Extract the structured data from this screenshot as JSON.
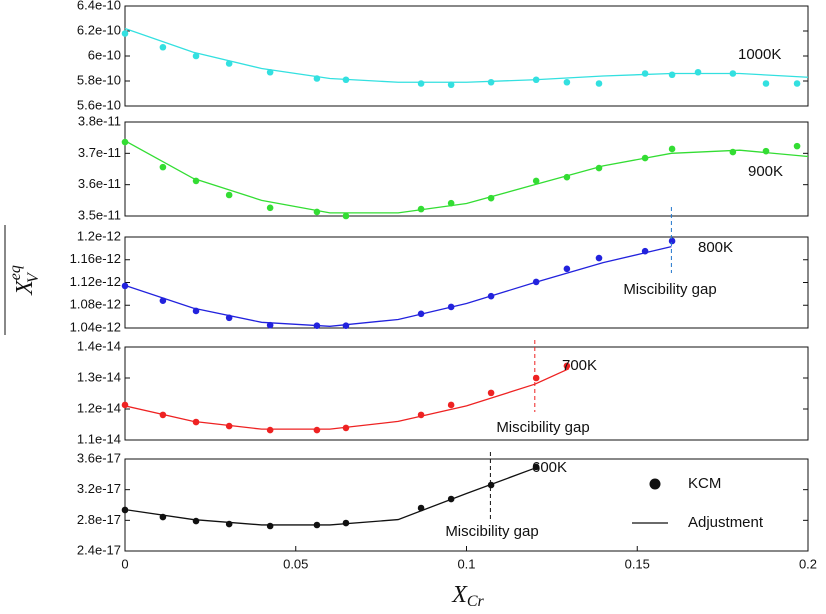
{
  "x_label": {
    "main": "X",
    "sub": "Cr"
  },
  "y_label": {
    "main": "X",
    "sup": "eq",
    "sub": "V"
  },
  "chart_data": [
    {
      "type": "scatter",
      "label": "1000K",
      "label_color": "#33dddd",
      "xlim": [
        0,
        0.2
      ],
      "ylim": [
        5.6e-10,
        6.4e-10
      ],
      "yticks": [
        5.6e-10,
        5.8e-10,
        6e-10,
        6.2e-10,
        6.4e-10
      ],
      "series": [
        {
          "style": "points",
          "color": "#33e0e0",
          "x": [
            0,
            0.0111,
            0.0208,
            0.0305,
            0.0425,
            0.0562,
            0.0647,
            0.0867,
            0.0955,
            0.1072,
            0.1204,
            0.1294,
            0.1388,
            0.1523,
            0.1602,
            0.1678,
            0.178,
            0.1877,
            0.1968
          ],
          "values": [
            6.18e-10,
            6.07e-10,
            6e-10,
            5.94e-10,
            5.87e-10,
            5.82e-10,
            5.81e-10,
            5.78e-10,
            5.77e-10,
            5.79e-10,
            5.81e-10,
            5.79e-10,
            5.78e-10,
            5.86e-10,
            5.85e-10,
            5.87e-10,
            5.86e-10,
            5.78e-10,
            5.78e-10
          ]
        },
        {
          "style": "line",
          "color": "#33e0e0",
          "x": [
            0,
            0.02,
            0.04,
            0.06,
            0.08,
            0.1,
            0.12,
            0.14,
            0.16,
            0.18,
            0.2
          ],
          "values": [
            6.22e-10,
            6.03e-10,
            5.9e-10,
            5.82e-10,
            5.79e-10,
            5.79e-10,
            5.81e-10,
            5.84e-10,
            5.86e-10,
            5.86e-10,
            5.83e-10
          ]
        }
      ]
    },
    {
      "type": "scatter",
      "label": "900K",
      "label_color": "#99cc33",
      "xlim": [
        0,
        0.2
      ],
      "ylim": [
        3.5e-11,
        3.8e-11
      ],
      "yticks": [
        3.5e-11,
        3.6e-11,
        3.7e-11,
        3.8e-11
      ],
      "series": [
        {
          "style": "points",
          "color": "#33dd33",
          "x": [
            0,
            0.0111,
            0.0208,
            0.0305,
            0.0425,
            0.0562,
            0.0647,
            0.0867,
            0.0955,
            0.1072,
            0.1204,
            0.1294,
            0.1388,
            0.1523,
            0.1602,
            0.178,
            0.1877,
            0.1968
          ],
          "values": [
            3.736e-11,
            3.656e-11,
            3.612e-11,
            3.567e-11,
            3.526e-11,
            3.513e-11,
            3.5e-11,
            3.522e-11,
            3.541e-11,
            3.557e-11,
            3.612e-11,
            3.624e-11,
            3.653e-11,
            3.685e-11,
            3.714e-11,
            3.704e-11,
            3.707e-11,
            3.723e-11
          ]
        },
        {
          "style": "line",
          "color": "#33dd33",
          "x": [
            0,
            0.02,
            0.04,
            0.06,
            0.08,
            0.1,
            0.12,
            0.14,
            0.16,
            0.18,
            0.2
          ],
          "values": [
            3.74e-11,
            3.62e-11,
            3.55e-11,
            3.51e-11,
            3.51e-11,
            3.54e-11,
            3.6e-11,
            3.66e-11,
            3.7e-11,
            3.71e-11,
            3.69e-11
          ]
        }
      ]
    },
    {
      "type": "scatter",
      "label": "800K",
      "label_color": "#2277cc",
      "gap_x": 0.16,
      "gap_label": "Miscibility gap",
      "xlim": [
        0,
        0.2
      ],
      "ylim": [
        1.04e-12,
        1.2e-12
      ],
      "yticks": [
        1.04e-12,
        1.08e-12,
        1.12e-12,
        1.16e-12,
        1.2e-12
      ],
      "series": [
        {
          "style": "points",
          "color": "#2222dd",
          "x": [
            0,
            0.0111,
            0.0208,
            0.0305,
            0.0425,
            0.0562,
            0.0647,
            0.0867,
            0.0955,
            0.1072,
            0.1204,
            0.1294,
            0.1388,
            0.1523,
            0.1602
          ],
          "values": [
            1.114e-12,
            1.088e-12,
            1.07e-12,
            1.058e-12,
            1.045e-12,
            1.044e-12,
            1.044e-12,
            1.065e-12,
            1.077e-12,
            1.096e-12,
            1.121e-12,
            1.144e-12,
            1.163e-12,
            1.175e-12,
            1.193e-12
          ]
        },
        {
          "style": "line",
          "color": "#2222dd",
          "x": [
            0,
            0.02,
            0.04,
            0.06,
            0.08,
            0.1,
            0.12,
            0.14,
            0.16
          ],
          "values": [
            1.115e-12,
            1.075e-12,
            1.05e-12,
            1.043e-12,
            1.055e-12,
            1.083e-12,
            1.12e-12,
            1.155e-12,
            1.183e-12
          ]
        }
      ]
    },
    {
      "type": "scatter",
      "label": "700K",
      "label_color": "#ee2222",
      "gap_x": 0.12,
      "gap_label": "Miscibility gap",
      "xlim": [
        0,
        0.2
      ],
      "ylim": [
        1.1e-14,
        1.4e-14
      ],
      "yticks": [
        1.1e-14,
        1.2e-14,
        1.3e-14,
        1.4e-14
      ],
      "series": [
        {
          "style": "points",
          "color": "#ee2222",
          "x": [
            0,
            0.0111,
            0.0208,
            0.0305,
            0.0425,
            0.0562,
            0.0647,
            0.0867,
            0.0955,
            0.1072,
            0.1204,
            0.1294
          ],
          "values": [
            1.213e-14,
            1.181e-14,
            1.158e-14,
            1.145e-14,
            1.132e-14,
            1.132e-14,
            1.139e-14,
            1.181e-14,
            1.213e-14,
            1.252e-14,
            1.3e-14,
            1.339e-14
          ]
        },
        {
          "style": "line",
          "color": "#ee2222",
          "x": [
            0,
            0.02,
            0.04,
            0.06,
            0.08,
            0.1,
            0.12,
            0.13
          ],
          "values": [
            1.21e-14,
            1.16e-14,
            1.135e-14,
            1.135e-14,
            1.16e-14,
            1.21e-14,
            1.28e-14,
            1.33e-14
          ]
        }
      ]
    },
    {
      "type": "scatter",
      "label": "600K",
      "label_color": "#111111",
      "gap_x": 0.107,
      "gap_label": "Miscibility gap",
      "xlim": [
        0,
        0.2
      ],
      "ylim": [
        2.4e-17,
        3.6e-17
      ],
      "yticks": [
        2.4e-17,
        2.8e-17,
        3.2e-17,
        3.6e-17
      ],
      "xticks": [
        0,
        0.05,
        0.1,
        0.15,
        0.2
      ],
      "legend": "right",
      "series": [
        {
          "name": "KCM",
          "style": "points",
          "color": "#111111",
          "x": [
            0,
            0.0111,
            0.0208,
            0.0305,
            0.0425,
            0.0562,
            0.0647,
            0.0867,
            0.0955,
            0.1072,
            0.1204
          ],
          "values": [
            2.935e-17,
            2.843e-17,
            2.791e-17,
            2.752e-17,
            2.726e-17,
            2.739e-17,
            2.765e-17,
            2.961e-17,
            3.078e-17,
            3.261e-17,
            3.496e-17
          ]
        },
        {
          "name": "Adjustment",
          "style": "line",
          "color": "#111111",
          "x": [
            0,
            0.02,
            0.04,
            0.06,
            0.08,
            0.1,
            0.12
          ],
          "values": [
            2.94e-17,
            2.81e-17,
            2.74e-17,
            2.74e-17,
            2.81e-17,
            3.15e-17,
            3.48e-17
          ]
        }
      ]
    }
  ]
}
